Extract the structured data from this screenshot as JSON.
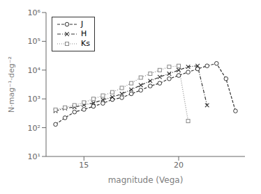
{
  "chart_data": {
    "type": "line",
    "xlabel": "magnitude (Vega)",
    "ylabel": "N·mag⁻¹·deg⁻²",
    "log": "y",
    "xlim": [
      13.0,
      23.5
    ],
    "ylim": [
      10,
      1000000
    ],
    "xticks": [
      15,
      20
    ],
    "yticks": [
      {
        "value": 10,
        "label": "10¹"
      },
      {
        "value": 100,
        "label": "10²"
      },
      {
        "value": 1000,
        "label": "10³"
      },
      {
        "value": 10000,
        "label": "10⁴"
      },
      {
        "value": 100000,
        "label": "10⁵"
      },
      {
        "value": 1000000,
        "label": "10⁶"
      }
    ],
    "legend": "upper left",
    "grid": false,
    "series": [
      {
        "name": "J",
        "color": "#333333",
        "marker": "circle",
        "line_style": "dashed",
        "x": [
          13.5,
          14.0,
          14.5,
          15.0,
          15.5,
          16.0,
          16.5,
          17.0,
          17.5,
          18.0,
          18.5,
          19.0,
          19.5,
          20.0,
          20.5,
          21.0,
          21.5,
          22.0,
          22.5,
          23.0
        ],
        "values": [
          130,
          220,
          350,
          430,
          550,
          700,
          950,
          1100,
          1500,
          2000,
          2800,
          3500,
          5000,
          6500,
          8500,
          11000,
          14000,
          17000,
          5000,
          380
        ]
      },
      {
        "name": "H",
        "color": "#333333",
        "marker": "x",
        "line_style": "dashdot",
        "x": [
          13.5,
          14.0,
          14.5,
          15.0,
          15.5,
          16.0,
          16.5,
          17.0,
          17.5,
          18.0,
          18.5,
          19.0,
          19.5,
          20.0,
          20.5,
          21.0,
          21.5
        ],
        "values": [
          380,
          470,
          520,
          620,
          720,
          930,
          1150,
          1500,
          2100,
          3000,
          4200,
          5800,
          7500,
          10000,
          13000,
          14000,
          600
        ]
      },
      {
        "name": "Ks",
        "color": "#888888",
        "marker": "square",
        "line_style": "dotted",
        "x": [
          13.5,
          14.0,
          14.5,
          15.0,
          15.5,
          16.0,
          16.5,
          17.0,
          17.5,
          18.0,
          18.5,
          19.0,
          19.5,
          20.0,
          20.5
        ],
        "values": [
          420,
          500,
          600,
          750,
          1000,
          1300,
          1700,
          2400,
          3500,
          5500,
          7500,
          10000,
          13000,
          14000,
          170
        ]
      }
    ]
  }
}
